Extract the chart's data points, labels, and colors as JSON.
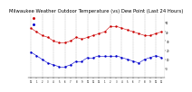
{
  "title": "Milwaukee Weather Outdoor Temperature (vs) Dew Point (Last 24 Hours)",
  "temp": [
    44,
    40,
    36,
    34,
    30,
    28,
    28,
    30,
    34,
    32,
    34,
    36,
    38,
    40,
    46,
    46,
    44,
    42,
    40,
    38,
    36,
    36,
    38,
    40
  ],
  "dew": [
    18,
    14,
    10,
    6,
    4,
    2,
    2,
    4,
    8,
    8,
    12,
    12,
    14,
    14,
    14,
    14,
    12,
    10,
    8,
    6,
    10,
    12,
    14,
    12
  ],
  "hours": [
    0,
    1,
    2,
    3,
    4,
    5,
    6,
    7,
    8,
    9,
    10,
    11,
    12,
    13,
    14,
    15,
    16,
    17,
    18,
    19,
    20,
    21,
    22,
    23
  ],
  "xlabels": [
    "12",
    "1",
    "2",
    "3",
    "4",
    "5",
    "6",
    "7",
    "8",
    "9",
    "10",
    "11",
    "12",
    "1",
    "2",
    "3",
    "4",
    "5",
    "6",
    "7",
    "8",
    "9",
    "10",
    "11"
  ],
  "temp_color": "#cc0000",
  "dew_color": "#0000cc",
  "black_color": "#000000",
  "bg_color": "#ffffff",
  "grid_color": "#888888",
  "ylim": [
    -10,
    60
  ],
  "yticks": [
    0,
    10,
    20,
    30,
    40,
    50
  ],
  "ytick_labels": [
    "0",
    "10",
    "20",
    "30",
    "40",
    "50"
  ],
  "title_fontsize": 3.8,
  "marker_size": 1.5,
  "lw": 0.4
}
